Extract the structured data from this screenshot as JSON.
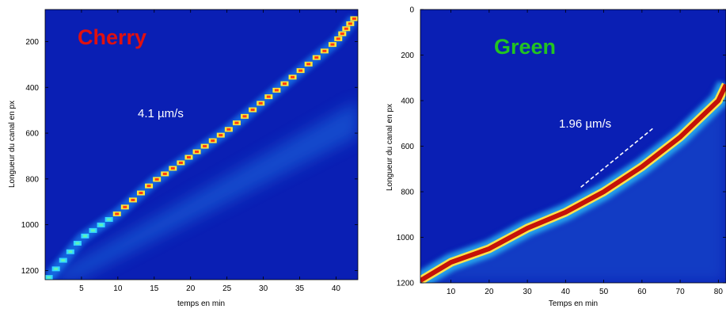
{
  "chart_data": [
    {
      "type": "heatmap",
      "panel_label": "Cherry",
      "panel_label_color": "#e01010",
      "annotation": "4.1 µm/s",
      "xlabel": "temps en min",
      "ylabel": "Longueur du canal en px",
      "xlim": [
        0,
        43
      ],
      "ylim": [
        1240,
        60
      ],
      "y_inverted": true,
      "xticks": [
        5,
        10,
        15,
        20,
        25,
        30,
        35,
        40
      ],
      "yticks": [
        200,
        400,
        600,
        800,
        1000,
        1200
      ],
      "colormap": "jet",
      "series": [
        {
          "x": [
            0.5,
            5,
            10,
            15,
            20,
            25,
            30,
            35,
            40,
            42.5
          ],
          "y": [
            1230,
            1060,
            950,
            810,
            700,
            590,
            460,
            330,
            200,
            100
          ]
        }
      ]
    },
    {
      "type": "heatmap",
      "panel_label": "Green",
      "panel_label_color": "#22c322",
      "annotation": "1.96 µm/s",
      "xlabel": "Temps en min",
      "ylabel": "Longueur du canal en px",
      "xlim": [
        2,
        82
      ],
      "ylim": [
        1200,
        0
      ],
      "y_inverted": true,
      "xticks": [
        10,
        20,
        30,
        40,
        50,
        60,
        70,
        80
      ],
      "yticks": [
        0,
        200,
        400,
        600,
        800,
        1000,
        1200
      ],
      "colormap": "jet",
      "series": [
        {
          "x": [
            2,
            10,
            20,
            30,
            40,
            50,
            60,
            70,
            80,
            82
          ],
          "y": [
            1190,
            1110,
            1050,
            960,
            890,
            800,
            690,
            560,
            400,
            330
          ]
        }
      ],
      "dashed_fit": {
        "x": [
          44,
          63
        ],
        "y": [
          780,
          520
        ]
      }
    }
  ]
}
